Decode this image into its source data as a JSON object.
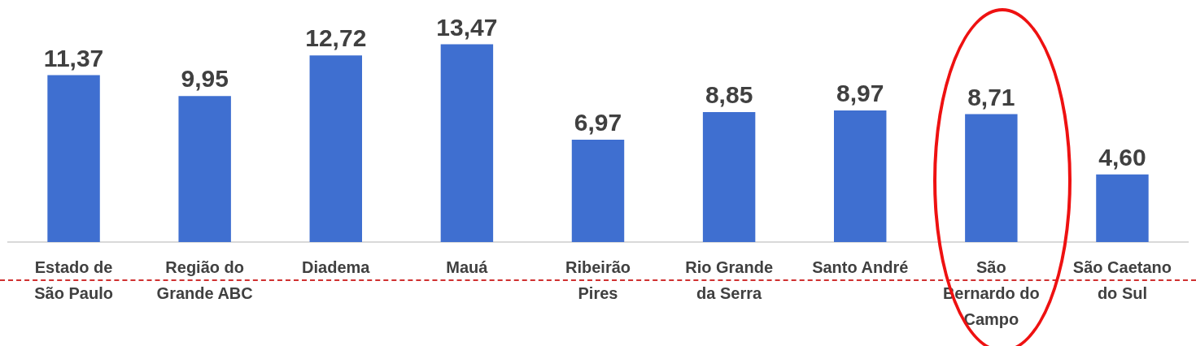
{
  "chart_data": {
    "type": "bar",
    "categories": [
      "Estado de São Paulo",
      "Região do Grande ABC",
      "Diadema",
      "Mauá",
      "Ribeirão Pires",
      "Rio Grande da Serra",
      "Santo André",
      "São Bernardo do Campo",
      "São Caetano do Sul"
    ],
    "values": [
      11.37,
      9.95,
      12.72,
      13.47,
      6.97,
      8.85,
      8.97,
      8.71,
      4.6
    ],
    "value_labels": [
      "11,37",
      "9,95",
      "12,72",
      "13,47",
      "6,97",
      "8,85",
      "8,97",
      "8,71",
      "4,60"
    ],
    "color": "#3f6fd0",
    "grid": false,
    "legend": false,
    "tick_labels": "x"
  }
}
